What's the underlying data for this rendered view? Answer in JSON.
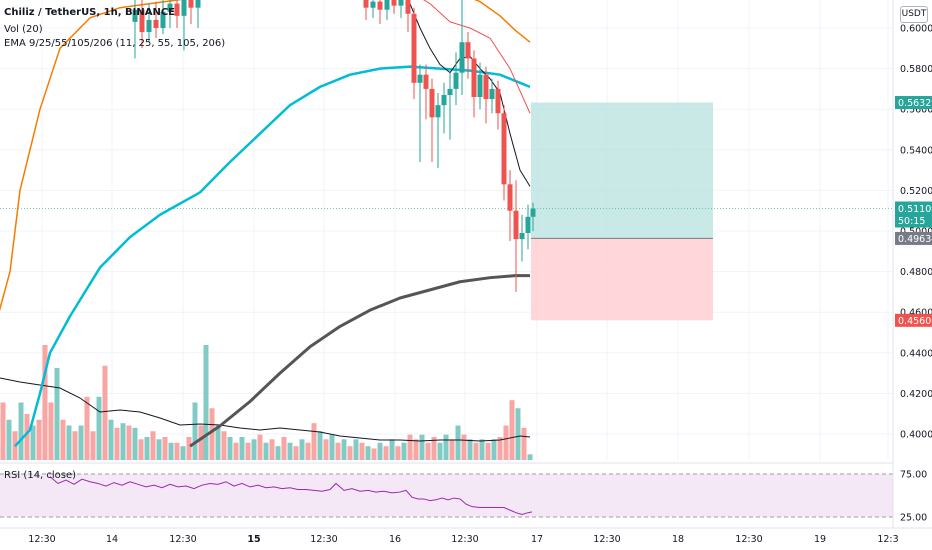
{
  "header": {
    "symbol_line": "Chiliz / TetherUS, 1h, BINANCE",
    "vol_line": "Vol (20)",
    "ema_line": "EMA 9/25/55/105/206 (11, 25, 55, 105, 206)"
  },
  "currency_badge": "USDT",
  "price_labels": {
    "target": "0.56329",
    "current": "0.51109",
    "countdown": "50:15",
    "entry": "0.49634",
    "stop": "0.45600"
  },
  "rsi": {
    "title": "RSI (14, close)",
    "upper": "75.00",
    "lower": "25.00"
  },
  "colors": {
    "up": "#26a69a",
    "down": "#ef5350",
    "ema_fast": "#f57c00",
    "ema_mid": "#00bcd4",
    "ema_slow": "#555555",
    "rsi_line": "#9c27b0",
    "profit_zone": "#b2dfdb",
    "loss_zone": "#ffcdd2"
  },
  "chart_data": {
    "type": "candlestick",
    "title": "Chiliz / TetherUS, 1h, BINANCE",
    "y_axis_ticks": [
      "0.60000",
      "0.58000",
      "0.56000",
      "0.54000",
      "0.52000",
      "0.50000",
      "0.48000",
      "0.46000",
      "0.44000",
      "0.42000",
      "0.40000"
    ],
    "x_axis_ticks": [
      "12:30",
      "14",
      "12:30",
      "15",
      "12:30",
      "16",
      "12:30",
      "17",
      "12:30",
      "18",
      "12:30",
      "19",
      "12:3"
    ],
    "ylim": [
      0.394,
      0.618
    ],
    "rsi_ticks": [
      "75.00",
      "25.00"
    ],
    "ema_fast": [
      [
        -1,
        0.46
      ],
      [
        10,
        0.48
      ],
      [
        20,
        0.52
      ],
      [
        40,
        0.56
      ],
      [
        60,
        0.59
      ],
      [
        90,
        0.605
      ],
      [
        120,
        0.61
      ],
      [
        150,
        0.612
      ],
      [
        180,
        0.614
      ],
      [
        210,
        0.617
      ],
      [
        240,
        0.62
      ],
      [
        270,
        0.622
      ],
      [
        300,
        0.622
      ],
      [
        330,
        0.623
      ],
      [
        360,
        0.622
      ],
      [
        390,
        0.622
      ],
      [
        420,
        0.621
      ],
      [
        450,
        0.619
      ],
      [
        480,
        0.613
      ],
      [
        500,
        0.606
      ],
      [
        515,
        0.599
      ],
      [
        530,
        0.593
      ]
    ],
    "ema_mid": [
      [
        15,
        0.394
      ],
      [
        30,
        0.402
      ],
      [
        40,
        0.42
      ],
      [
        50,
        0.44
      ],
      [
        70,
        0.458
      ],
      [
        100,
        0.482
      ],
      [
        130,
        0.497
      ],
      [
        160,
        0.508
      ],
      [
        200,
        0.519
      ],
      [
        230,
        0.534
      ],
      [
        260,
        0.548
      ],
      [
        290,
        0.562
      ],
      [
        320,
        0.571
      ],
      [
        350,
        0.577
      ],
      [
        380,
        0.58
      ],
      [
        410,
        0.581
      ],
      [
        440,
        0.58
      ],
      [
        470,
        0.579
      ],
      [
        500,
        0.577
      ],
      [
        520,
        0.573
      ],
      [
        530,
        0.571
      ]
    ],
    "ema_slow": [
      [
        190,
        0.394
      ],
      [
        220,
        0.404
      ],
      [
        250,
        0.416
      ],
      [
        280,
        0.43
      ],
      [
        310,
        0.443
      ],
      [
        340,
        0.453
      ],
      [
        370,
        0.461
      ],
      [
        400,
        0.467
      ],
      [
        430,
        0.471
      ],
      [
        460,
        0.475
      ],
      [
        490,
        0.477
      ],
      [
        515,
        0.478
      ],
      [
        530,
        0.478
      ]
    ],
    "candles": [
      {
        "x": 135,
        "o": 0.603,
        "c": 0.609,
        "h": 0.614,
        "l": 0.585
      },
      {
        "x": 142,
        "o": 0.609,
        "c": 0.598,
        "h": 0.615,
        "l": 0.59
      },
      {
        "x": 149,
        "o": 0.598,
        "c": 0.604,
        "h": 0.612,
        "l": 0.593
      },
      {
        "x": 156,
        "o": 0.604,
        "c": 0.6,
        "h": 0.613,
        "l": 0.595
      },
      {
        "x": 163,
        "o": 0.6,
        "c": 0.608,
        "h": 0.616,
        "l": 0.597
      },
      {
        "x": 170,
        "o": 0.608,
        "c": 0.612,
        "h": 0.618,
        "l": 0.6
      },
      {
        "x": 177,
        "o": 0.612,
        "c": 0.606,
        "h": 0.618,
        "l": 0.6
      },
      {
        "x": 184,
        "o": 0.606,
        "c": 0.614,
        "h": 0.618,
        "l": 0.589
      },
      {
        "x": 191,
        "o": 0.614,
        "c": 0.61,
        "h": 0.618,
        "l": 0.602
      },
      {
        "x": 198,
        "o": 0.61,
        "c": 0.616,
        "h": 0.618,
        "l": 0.6
      },
      {
        "x": 366,
        "o": 0.615,
        "c": 0.61,
        "h": 0.618,
        "l": 0.604
      },
      {
        "x": 373,
        "o": 0.61,
        "c": 0.613,
        "h": 0.618,
        "l": 0.605
      },
      {
        "x": 380,
        "o": 0.613,
        "c": 0.609,
        "h": 0.618,
        "l": 0.602
      },
      {
        "x": 387,
        "o": 0.609,
        "c": 0.614,
        "h": 0.618,
        "l": 0.604
      },
      {
        "x": 394,
        "o": 0.614,
        "c": 0.611,
        "h": 0.618,
        "l": 0.607
      },
      {
        "x": 401,
        "o": 0.611,
        "c": 0.614,
        "h": 0.618,
        "l": 0.605
      },
      {
        "x": 408,
        "o": 0.614,
        "c": 0.607,
        "h": 0.618,
        "l": 0.598
      },
      {
        "x": 414,
        "o": 0.607,
        "c": 0.573,
        "h": 0.61,
        "l": 0.565
      },
      {
        "x": 420,
        "o": 0.573,
        "c": 0.577,
        "h": 0.582,
        "l": 0.534
      },
      {
        "x": 426,
        "o": 0.577,
        "c": 0.57,
        "h": 0.582,
        "l": 0.555
      },
      {
        "x": 432,
        "o": 0.57,
        "c": 0.556,
        "h": 0.575,
        "l": 0.534
      },
      {
        "x": 438,
        "o": 0.556,
        "c": 0.562,
        "h": 0.568,
        "l": 0.531
      },
      {
        "x": 444,
        "o": 0.562,
        "c": 0.567,
        "h": 0.573,
        "l": 0.548
      },
      {
        "x": 450,
        "o": 0.567,
        "c": 0.57,
        "h": 0.578,
        "l": 0.545
      },
      {
        "x": 456,
        "o": 0.57,
        "c": 0.578,
        "h": 0.588,
        "l": 0.562
      },
      {
        "x": 462,
        "o": 0.578,
        "c": 0.593,
        "h": 0.617,
        "l": 0.567
      },
      {
        "x": 468,
        "o": 0.593,
        "c": 0.585,
        "h": 0.598,
        "l": 0.575
      },
      {
        "x": 474,
        "o": 0.585,
        "c": 0.566,
        "h": 0.589,
        "l": 0.556
      },
      {
        "x": 480,
        "o": 0.566,
        "c": 0.577,
        "h": 0.583,
        "l": 0.56
      },
      {
        "x": 486,
        "o": 0.577,
        "c": 0.565,
        "h": 0.581,
        "l": 0.553
      },
      {
        "x": 492,
        "o": 0.565,
        "c": 0.57,
        "h": 0.575,
        "l": 0.558
      },
      {
        "x": 498,
        "o": 0.57,
        "c": 0.558,
        "h": 0.574,
        "l": 0.55
      },
      {
        "x": 504,
        "o": 0.558,
        "c": 0.523,
        "h": 0.562,
        "l": 0.515
      },
      {
        "x": 510,
        "o": 0.523,
        "c": 0.51,
        "h": 0.53,
        "l": 0.495
      },
      {
        "x": 516,
        "o": 0.51,
        "c": 0.496,
        "h": 0.525,
        "l": 0.47
      },
      {
        "x": 522,
        "o": 0.496,
        "c": 0.499,
        "h": 0.508,
        "l": 0.485
      },
      {
        "x": 528,
        "o": 0.499,
        "c": 0.507,
        "h": 0.513,
        "l": 0.491
      },
      {
        "x": 533,
        "o": 0.507,
        "c": 0.511,
        "h": 0.514,
        "l": 0.5
      }
    ],
    "volume_bars": [
      {
        "x": 3,
        "v": 0.5,
        "up": false
      },
      {
        "x": 9,
        "v": 0.35,
        "up": true
      },
      {
        "x": 15,
        "v": 0.25,
        "up": false
      },
      {
        "x": 21,
        "v": 0.5,
        "up": true
      },
      {
        "x": 27,
        "v": 0.4,
        "up": false
      },
      {
        "x": 33,
        "v": 0.3,
        "up": true
      },
      {
        "x": 39,
        "v": 0.35,
        "up": false
      },
      {
        "x": 45,
        "v": 1.0,
        "up": false
      },
      {
        "x": 51,
        "v": 0.5,
        "up": false
      },
      {
        "x": 57,
        "v": 0.8,
        "up": true
      },
      {
        "x": 63,
        "v": 0.35,
        "up": false
      },
      {
        "x": 69,
        "v": 0.3,
        "up": true
      },
      {
        "x": 75,
        "v": 0.25,
        "up": false
      },
      {
        "x": 81,
        "v": 0.3,
        "up": true
      },
      {
        "x": 87,
        "v": 0.55,
        "up": false
      },
      {
        "x": 93,
        "v": 0.25,
        "up": false
      },
      {
        "x": 99,
        "v": 0.55,
        "up": true
      },
      {
        "x": 105,
        "v": 0.82,
        "up": false
      },
      {
        "x": 111,
        "v": 0.35,
        "up": true
      },
      {
        "x": 117,
        "v": 0.28,
        "up": false
      },
      {
        "x": 123,
        "v": 0.32,
        "up": true
      },
      {
        "x": 129,
        "v": 0.3,
        "up": false
      },
      {
        "x": 135,
        "v": 0.28,
        "up": true
      },
      {
        "x": 141,
        "v": 0.18,
        "up": false
      },
      {
        "x": 147,
        "v": 0.2,
        "up": true
      },
      {
        "x": 153,
        "v": 0.25,
        "up": false
      },
      {
        "x": 159,
        "v": 0.18,
        "up": true
      },
      {
        "x": 165,
        "v": 0.2,
        "up": false
      },
      {
        "x": 171,
        "v": 0.15,
        "up": true
      },
      {
        "x": 177,
        "v": 0.15,
        "up": false
      },
      {
        "x": 183,
        "v": 0.12,
        "up": true
      },
      {
        "x": 189,
        "v": 0.2,
        "up": false
      },
      {
        "x": 195,
        "v": 0.5,
        "up": true
      },
      {
        "x": 201,
        "v": 0.3,
        "up": false
      },
      {
        "x": 206,
        "v": 1.0,
        "up": true
      },
      {
        "x": 212,
        "v": 0.45,
        "up": false
      },
      {
        "x": 218,
        "v": 0.3,
        "up": true
      },
      {
        "x": 224,
        "v": 0.25,
        "up": false
      },
      {
        "x": 230,
        "v": 0.2,
        "up": true
      },
      {
        "x": 236,
        "v": 0.15,
        "up": false
      },
      {
        "x": 242,
        "v": 0.2,
        "up": true
      },
      {
        "x": 248,
        "v": 0.15,
        "up": false
      },
      {
        "x": 254,
        "v": 0.18,
        "up": true
      },
      {
        "x": 260,
        "v": 0.22,
        "up": false
      },
      {
        "x": 266,
        "v": 0.15,
        "up": true
      },
      {
        "x": 272,
        "v": 0.18,
        "up": false
      },
      {
        "x": 278,
        "v": 0.12,
        "up": true
      },
      {
        "x": 284,
        "v": 0.2,
        "up": false
      },
      {
        "x": 290,
        "v": 0.15,
        "up": true
      },
      {
        "x": 296,
        "v": 0.12,
        "up": false
      },
      {
        "x": 302,
        "v": 0.18,
        "up": true
      },
      {
        "x": 308,
        "v": 0.15,
        "up": false
      },
      {
        "x": 314,
        "v": 0.32,
        "up": false
      },
      {
        "x": 320,
        "v": 0.25,
        "up": true
      },
      {
        "x": 326,
        "v": 0.18,
        "up": false
      },
      {
        "x": 332,
        "v": 0.22,
        "up": true
      },
      {
        "x": 338,
        "v": 0.15,
        "up": false
      },
      {
        "x": 344,
        "v": 0.18,
        "up": true
      },
      {
        "x": 350,
        "v": 0.12,
        "up": false
      },
      {
        "x": 356,
        "v": 0.18,
        "up": true
      },
      {
        "x": 362,
        "v": 0.15,
        "up": false
      },
      {
        "x": 368,
        "v": 0.12,
        "up": true
      },
      {
        "x": 374,
        "v": 0.1,
        "up": false
      },
      {
        "x": 380,
        "v": 0.15,
        "up": true
      },
      {
        "x": 386,
        "v": 0.12,
        "up": false
      },
      {
        "x": 392,
        "v": 0.18,
        "up": true
      },
      {
        "x": 398,
        "v": 0.12,
        "up": false
      },
      {
        "x": 404,
        "v": 0.15,
        "up": true
      },
      {
        "x": 410,
        "v": 0.22,
        "up": false
      },
      {
        "x": 416,
        "v": 0.18,
        "up": false
      },
      {
        "x": 422,
        "v": 0.22,
        "up": true
      },
      {
        "x": 428,
        "v": 0.15,
        "up": false
      },
      {
        "x": 434,
        "v": 0.2,
        "up": false
      },
      {
        "x": 440,
        "v": 0.15,
        "up": true
      },
      {
        "x": 446,
        "v": 0.22,
        "up": true
      },
      {
        "x": 452,
        "v": 0.18,
        "up": false
      },
      {
        "x": 458,
        "v": 0.3,
        "up": true
      },
      {
        "x": 464,
        "v": 0.22,
        "up": false
      },
      {
        "x": 470,
        "v": 0.18,
        "up": true
      },
      {
        "x": 476,
        "v": 0.15,
        "up": false
      },
      {
        "x": 482,
        "v": 0.18,
        "up": true
      },
      {
        "x": 488,
        "v": 0.15,
        "up": false
      },
      {
        "x": 494,
        "v": 0.18,
        "up": true
      },
      {
        "x": 500,
        "v": 0.2,
        "up": false
      },
      {
        "x": 506,
        "v": 0.3,
        "up": false
      },
      {
        "x": 512,
        "v": 0.52,
        "up": false
      },
      {
        "x": 518,
        "v": 0.45,
        "up": true
      },
      {
        "x": 524,
        "v": 0.28,
        "up": false
      },
      {
        "x": 530,
        "v": 0.05,
        "up": true
      }
    ],
    "rsi_line": [
      [
        50,
        72
      ],
      [
        58,
        64
      ],
      [
        66,
        68
      ],
      [
        74,
        63
      ],
      [
        82,
        69
      ],
      [
        90,
        66
      ],
      [
        98,
        64
      ],
      [
        106,
        61
      ],
      [
        114,
        65
      ],
      [
        122,
        62
      ],
      [
        130,
        66
      ],
      [
        138,
        63
      ],
      [
        146,
        60
      ],
      [
        154,
        62
      ],
      [
        162,
        59
      ],
      [
        170,
        63
      ],
      [
        178,
        60
      ],
      [
        186,
        61
      ],
      [
        194,
        58
      ],
      [
        202,
        62
      ],
      [
        210,
        64
      ],
      [
        218,
        63
      ],
      [
        226,
        66
      ],
      [
        234,
        61
      ],
      [
        242,
        64
      ],
      [
        250,
        60
      ],
      [
        258,
        62
      ],
      [
        266,
        59
      ],
      [
        274,
        60
      ],
      [
        282,
        58
      ],
      [
        290,
        59
      ],
      [
        298,
        57
      ],
      [
        306,
        57
      ],
      [
        314,
        56
      ],
      [
        322,
        55
      ],
      [
        330,
        57
      ],
      [
        336,
        64
      ],
      [
        344,
        56
      ],
      [
        352,
        58
      ],
      [
        360,
        55
      ],
      [
        368,
        56
      ],
      [
        376,
        54
      ],
      [
        384,
        55
      ],
      [
        392,
        53
      ],
      [
        400,
        54
      ],
      [
        406,
        56
      ],
      [
        412,
        48
      ],
      [
        418,
        46
      ],
      [
        424,
        46
      ],
      [
        430,
        44
      ],
      [
        436,
        45
      ],
      [
        442,
        47
      ],
      [
        448,
        45
      ],
      [
        454,
        47
      ],
      [
        460,
        46
      ],
      [
        466,
        40
      ],
      [
        472,
        37
      ],
      [
        480,
        36
      ],
      [
        488,
        36
      ],
      [
        496,
        36
      ],
      [
        504,
        36
      ],
      [
        510,
        33
      ],
      [
        516,
        30
      ],
      [
        522,
        28
      ],
      [
        528,
        30
      ],
      [
        532,
        31
      ]
    ]
  }
}
